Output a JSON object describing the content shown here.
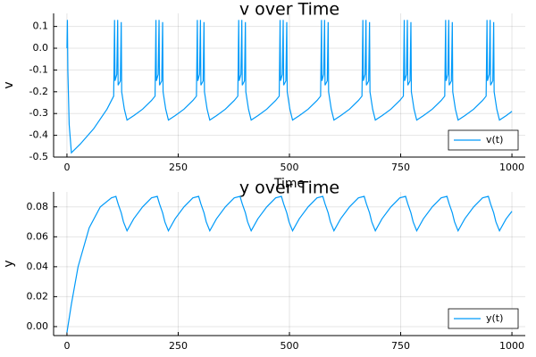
{
  "chart_data": [
    {
      "type": "line",
      "title": "v over Time",
      "xlabel": "Time",
      "ylabel": "v",
      "grid": true,
      "legend": "bottom right",
      "xlim": [
        -30,
        1030
      ],
      "xticks": [
        0,
        250,
        500,
        750,
        1000
      ],
      "ylim": [
        -0.5,
        0.16
      ],
      "yticks": [
        0.1,
        {
          "value": 0,
          "label": "0.0"
        },
        -0.1,
        -0.2,
        -0.3,
        -0.4,
        -0.5
      ],
      "x": [
        0,
        1,
        2,
        5,
        10,
        30,
        60,
        90,
        100,
        105,
        107,
        108,
        112,
        114,
        115,
        120,
        122,
        123,
        129,
        135,
        150,
        170,
        190,
        198,
        200,
        201,
        205,
        207,
        208,
        213,
        215,
        216,
        222,
        228,
        243,
        263,
        283,
        291,
        293,
        294,
        298,
        300,
        301,
        306,
        308,
        309,
        315,
        321,
        336,
        356,
        376,
        384,
        386,
        387,
        391,
        393,
        394,
        399,
        401,
        402,
        408,
        414,
        429,
        449,
        469,
        477,
        479,
        480,
        484,
        486,
        487,
        492,
        494,
        495,
        501,
        507,
        522,
        542,
        562,
        570,
        572,
        573,
        577,
        579,
        580,
        585,
        587,
        588,
        594,
        600,
        615,
        635,
        655,
        663,
        665,
        666,
        670,
        672,
        673,
        678,
        680,
        681,
        687,
        693,
        708,
        728,
        748,
        756,
        758,
        759,
        763,
        765,
        766,
        771,
        773,
        774,
        780,
        786,
        801,
        821,
        841,
        849,
        851,
        852,
        856,
        858,
        859,
        864,
        866,
        867,
        873,
        879,
        894,
        914,
        934,
        942,
        944,
        945,
        949,
        951,
        952,
        957,
        959,
        960,
        966,
        972,
        987,
        1000
      ],
      "series": [
        {
          "name": "v(t)",
          "color": "#009af9",
          "values": [
            0,
            0.13,
            -0.1,
            -0.35,
            -0.48,
            -0.44,
            -0.37,
            -0.28,
            -0.24,
            -0.22,
            0.13,
            -0.15,
            -0.12,
            0.13,
            -0.17,
            -0.15,
            0.12,
            -0.2,
            -0.28,
            -0.33,
            -0.31,
            -0.28,
            -0.24,
            -0.22,
            0.13,
            -0.15,
            -0.12,
            0.13,
            -0.17,
            -0.15,
            0.12,
            -0.2,
            -0.28,
            -0.33,
            -0.31,
            -0.28,
            -0.24,
            -0.22,
            0.13,
            -0.15,
            -0.12,
            0.13,
            -0.17,
            -0.15,
            0.12,
            -0.2,
            -0.28,
            -0.33,
            -0.31,
            -0.28,
            -0.24,
            -0.22,
            0.13,
            -0.15,
            -0.12,
            0.13,
            -0.17,
            -0.15,
            0.12,
            -0.2,
            -0.28,
            -0.33,
            -0.31,
            -0.28,
            -0.24,
            -0.22,
            0.13,
            -0.15,
            -0.12,
            0.13,
            -0.17,
            -0.15,
            0.12,
            -0.2,
            -0.28,
            -0.33,
            -0.31,
            -0.28,
            -0.24,
            -0.22,
            0.13,
            -0.15,
            -0.12,
            0.13,
            -0.17,
            -0.15,
            0.12,
            -0.2,
            -0.28,
            -0.33,
            -0.31,
            -0.28,
            -0.24,
            -0.22,
            0.13,
            -0.15,
            -0.12,
            0.13,
            -0.17,
            -0.15,
            0.12,
            -0.2,
            -0.28,
            -0.33,
            -0.31,
            -0.28,
            -0.24,
            -0.22,
            0.13,
            -0.15,
            -0.12,
            0.13,
            -0.17,
            -0.15,
            0.12,
            -0.2,
            -0.28,
            -0.33,
            -0.31,
            -0.28,
            -0.24,
            -0.22,
            0.13,
            -0.15,
            -0.12,
            0.13,
            -0.17,
            -0.15,
            0.12,
            -0.2,
            -0.28,
            -0.33,
            -0.31,
            -0.28,
            -0.24,
            -0.22,
            0.13,
            -0.15,
            -0.12,
            0.13,
            -0.17,
            -0.15,
            0.12,
            -0.2,
            -0.28,
            -0.33,
            -0.31,
            -0.29
          ]
        }
      ]
    },
    {
      "type": "line",
      "title": "y over Time",
      "ylabel": "y",
      "grid": true,
      "legend": "bottom right",
      "xlim": [
        -30,
        1030
      ],
      "xticks": [
        0,
        250,
        500,
        750,
        1000
      ],
      "ylim": [
        -0.006,
        0.09
      ],
      "yticks": [
        {
          "value": 0,
          "label": "0.00"
        },
        0.02,
        0.04,
        0.06,
        0.08
      ],
      "x": [
        0,
        10,
        25,
        50,
        75,
        100,
        110,
        115,
        122,
        127,
        135,
        150,
        170,
        190,
        203,
        208,
        215,
        220,
        228,
        243,
        263,
        283,
        296,
        301,
        308,
        313,
        321,
        336,
        356,
        376,
        389,
        394,
        401,
        406,
        414,
        429,
        449,
        469,
        482,
        487,
        494,
        499,
        507,
        522,
        542,
        562,
        575,
        580,
        587,
        592,
        600,
        615,
        635,
        655,
        668,
        673,
        680,
        685,
        693,
        708,
        728,
        748,
        761,
        766,
        773,
        778,
        786,
        801,
        821,
        841,
        854,
        859,
        866,
        871,
        879,
        894,
        914,
        934,
        947,
        952,
        959,
        964,
        972,
        987,
        1000
      ],
      "series": [
        {
          "name": "y(t)",
          "color": "#009af9",
          "values": [
            -0.004,
            0.015,
            0.04,
            0.066,
            0.08,
            0.086,
            0.087,
            0.082,
            0.076,
            0.07,
            0.064,
            0.072,
            0.08,
            0.086,
            0.087,
            0.082,
            0.076,
            0.07,
            0.064,
            0.072,
            0.08,
            0.086,
            0.087,
            0.082,
            0.076,
            0.07,
            0.064,
            0.072,
            0.08,
            0.086,
            0.087,
            0.082,
            0.076,
            0.07,
            0.064,
            0.072,
            0.08,
            0.086,
            0.087,
            0.082,
            0.076,
            0.07,
            0.064,
            0.072,
            0.08,
            0.086,
            0.087,
            0.082,
            0.076,
            0.07,
            0.064,
            0.072,
            0.08,
            0.086,
            0.087,
            0.082,
            0.076,
            0.07,
            0.064,
            0.072,
            0.08,
            0.086,
            0.087,
            0.082,
            0.076,
            0.07,
            0.064,
            0.072,
            0.08,
            0.086,
            0.087,
            0.082,
            0.076,
            0.07,
            0.064,
            0.072,
            0.08,
            0.086,
            0.087,
            0.082,
            0.076,
            0.07,
            0.064,
            0.072,
            0.077
          ]
        }
      ]
    }
  ]
}
